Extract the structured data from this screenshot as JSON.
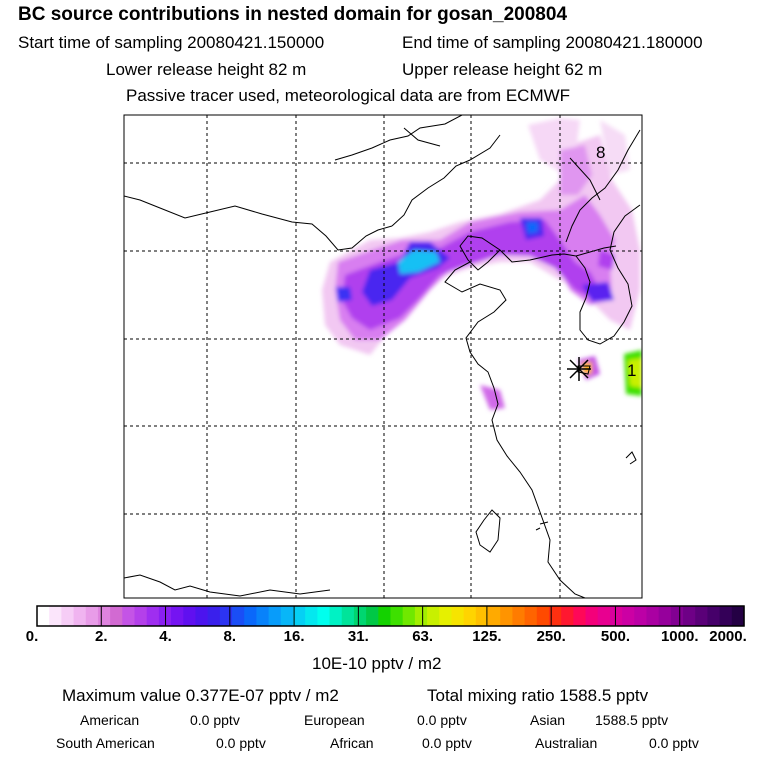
{
  "header": {
    "title": "BC  source contributions in nested domain for gosan_200804",
    "start_time": "Start time of sampling 20080421.150000",
    "end_time": "End time of sampling 20080421.180000",
    "lower_release": "Lower release height   82 m",
    "upper_release": "Upper release height   62 m",
    "tracer_note": "Passive tracer used, meteorological data are from ECMWF"
  },
  "map": {
    "labels": [
      {
        "text": "8",
        "name": "label-8"
      },
      {
        "text": "1",
        "name": "label-1"
      }
    ],
    "receptor": "star-marker"
  },
  "colorbar": {
    "ticks": [
      "0.",
      "2.",
      "4.",
      "8.",
      "16.",
      "31.",
      "63.",
      "125.",
      "250.",
      "500.",
      "1000.",
      "2000."
    ],
    "unit": "10E-10 pptv / m2",
    "colors": [
      "#ffffff",
      "#fbe5fb",
      "#f6cdf6",
      "#f0b4f0",
      "#e89ce8",
      "#de83de",
      "#d26ad2",
      "#c454e6",
      "#b440ea",
      "#9f2ef0",
      "#8a1ff2",
      "#7514f2",
      "#6010f0",
      "#4c14ee",
      "#3a20ec",
      "#2c34f2",
      "#1a4ef6",
      "#0a68fa",
      "#0882fa",
      "#089cfa",
      "#08b6f8",
      "#06d0f4",
      "#04e8ef",
      "#00ffee",
      "#00f2c4",
      "#00e49a",
      "#00d670",
      "#00c846",
      "#14d200",
      "#3ee000",
      "#70e800",
      "#a2ee00",
      "#c8f000",
      "#e6f000",
      "#f6e400",
      "#ffd400",
      "#ffc000",
      "#ffaa00",
      "#ff9400",
      "#ff7c00",
      "#ff6400",
      "#ff4a00",
      "#ff3010",
      "#ff1830",
      "#ff0858",
      "#f4007a",
      "#e80090",
      "#da009c",
      "#cc00a4",
      "#bc00a6",
      "#aa00a2",
      "#96009c",
      "#820092",
      "#6e0086",
      "#5a0078",
      "#46006a",
      "#340058",
      "#240044"
    ]
  },
  "stats": {
    "max_value": "Maximum value  0.377E-07 pptv / m2",
    "total_mixing": "Total mixing ratio     1588.5 pptv",
    "american_label": "American",
    "american_value": "0.0 pptv",
    "european_label": "European",
    "european_value": "0.0 pptv",
    "asian_label": "Asian",
    "asian_value": "1588.5 pptv",
    "south_american_label": "South American",
    "south_american_value": "0.0 pptv",
    "african_label": "African",
    "african_value": "0.0 pptv",
    "australian_label": "Australian",
    "australian_value": "0.0 pptv"
  }
}
